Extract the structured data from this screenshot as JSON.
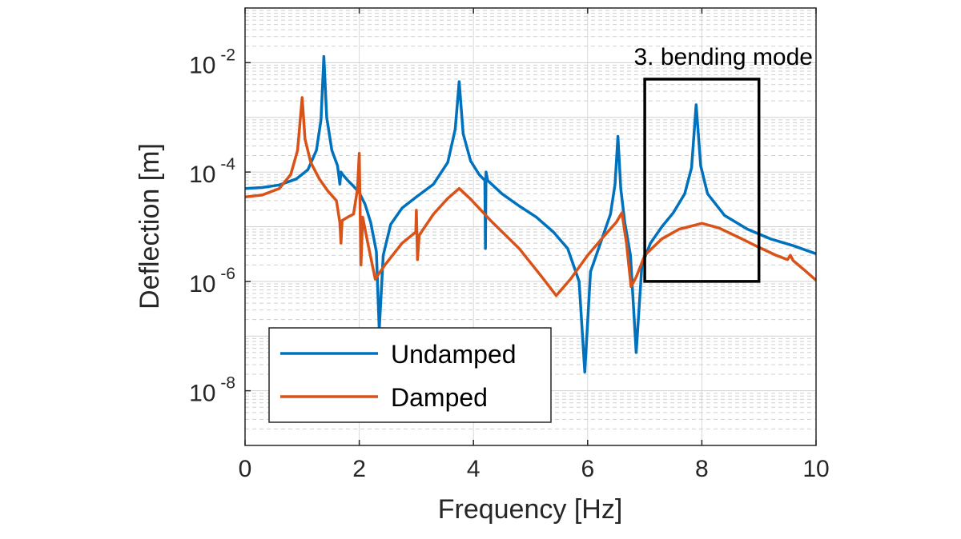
{
  "chart_data": {
    "type": "line",
    "title": "",
    "xlabel": "Frequency [Hz]",
    "ylabel": "Deflection [m]",
    "x_scale": "linear",
    "y_scale": "log",
    "xlim": [
      0,
      10
    ],
    "ylim": [
      1e-09,
      0.1
    ],
    "xticks": [
      0,
      2,
      4,
      6,
      8,
      10
    ],
    "xtick_labels": [
      "0",
      "2",
      "4",
      "6",
      "8",
      "10"
    ],
    "yticks": [
      0.01,
      0.0001,
      1e-06,
      1e-08
    ],
    "ytick_labels": [
      {
        "base": "10",
        "exp": "-2"
      },
      {
        "base": "10",
        "exp": "-4"
      },
      {
        "base": "10",
        "exp": "-6"
      },
      {
        "base": "10",
        "exp": "-8"
      }
    ],
    "grid": "major and minor",
    "legend_position": "bottom-left",
    "series": [
      {
        "name": "Undamped",
        "color": "#0072BD",
        "points": [
          [
            0,
            5e-05
          ],
          [
            0.3,
            5.2e-05
          ],
          [
            0.6,
            5.8e-05
          ],
          [
            0.9,
            7.5e-05
          ],
          [
            1.1,
            0.00011
          ],
          [
            1.25,
            0.00025
          ],
          [
            1.33,
            0.0009
          ],
          [
            1.38,
            0.013
          ],
          [
            1.43,
            0.001
          ],
          [
            1.52,
            0.00025
          ],
          [
            1.62,
            0.00013
          ],
          [
            1.66,
            6e-05
          ],
          [
            1.68,
            0.0001
          ],
          [
            1.71,
            9e-05
          ],
          [
            1.8,
            7e-05
          ],
          [
            1.9,
            5.5e-05
          ],
          [
            2.0,
            4.2e-05
          ],
          [
            2.1,
            2.6e-05
          ],
          [
            2.2,
            1.2e-05
          ],
          [
            2.3,
            3.5e-06
          ],
          [
            2.35,
            1.3e-07
          ],
          [
            2.42,
            3e-06
          ],
          [
            2.55,
            1.1e-05
          ],
          [
            2.75,
            2.2e-05
          ],
          [
            3.0,
            3.5e-05
          ],
          [
            3.3,
            6e-05
          ],
          [
            3.55,
            0.00015
          ],
          [
            3.68,
            0.0006
          ],
          [
            3.75,
            0.0045
          ],
          [
            3.82,
            0.0005
          ],
          [
            3.95,
            0.00016
          ],
          [
            4.1,
            9e-05
          ],
          [
            4.2,
            7e-05
          ],
          [
            4.21,
            4e-06
          ],
          [
            4.22,
            0.0001
          ],
          [
            4.25,
            7e-05
          ],
          [
            4.5,
            4e-05
          ],
          [
            4.8,
            2.4e-05
          ],
          [
            5.1,
            1.5e-05
          ],
          [
            5.4,
            8e-06
          ],
          [
            5.65,
            4e-06
          ],
          [
            5.85,
            1e-06
          ],
          [
            5.95,
            2.2e-08
          ],
          [
            6.05,
            1.5e-06
          ],
          [
            6.25,
            6e-06
          ],
          [
            6.4,
            1.7e-05
          ],
          [
            6.48,
            6e-05
          ],
          [
            6.53,
            0.00045
          ],
          [
            6.58,
            5e-05
          ],
          [
            6.65,
            1.2e-05
          ],
          [
            6.75,
            3e-06
          ],
          [
            6.85,
            5e-08
          ],
          [
            6.95,
            2e-06
          ],
          [
            7.1,
            5e-06
          ],
          [
            7.3,
            1e-05
          ],
          [
            7.5,
            1.8e-05
          ],
          [
            7.7,
            4e-05
          ],
          [
            7.82,
            0.00012
          ],
          [
            7.9,
            0.0017
          ],
          [
            7.98,
            0.00013
          ],
          [
            8.1,
            4e-05
          ],
          [
            8.4,
            1.6e-05
          ],
          [
            8.8,
            9e-06
          ],
          [
            9.2,
            6e-06
          ],
          [
            9.6,
            4.5e-06
          ],
          [
            10,
            3.2e-06
          ]
        ]
      },
      {
        "name": "Damped",
        "color": "#D95319",
        "points": [
          [
            0,
            3.5e-05
          ],
          [
            0.3,
            3.8e-05
          ],
          [
            0.6,
            5e-05
          ],
          [
            0.8,
            9e-05
          ],
          [
            0.92,
            0.00025
          ],
          [
            1.0,
            0.0023
          ],
          [
            1.05,
            0.0004
          ],
          [
            1.15,
            0.00015
          ],
          [
            1.3,
            7.5e-05
          ],
          [
            1.45,
            4.5e-05
          ],
          [
            1.6,
            3e-05
          ],
          [
            1.66,
            1.2e-05
          ],
          [
            1.68,
            5e-06
          ],
          [
            1.7,
            1.3e-05
          ],
          [
            1.8,
            1.5e-05
          ],
          [
            1.9,
            1.7e-05
          ],
          [
            1.97,
            5e-05
          ],
          [
            2.0,
            0.00022
          ],
          [
            2.03,
            2e-06
          ],
          [
            2.06,
            1.5e-05
          ],
          [
            2.15,
            5e-06
          ],
          [
            2.28,
            1.1e-06
          ],
          [
            2.45,
            2e-06
          ],
          [
            2.75,
            5e-06
          ],
          [
            2.99,
            8e-06
          ],
          [
            3.0,
            2e-05
          ],
          [
            3.02,
            2.5e-06
          ],
          [
            3.05,
            7e-06
          ],
          [
            3.3,
            1.7e-05
          ],
          [
            3.55,
            3.3e-05
          ],
          [
            3.75,
            5e-05
          ],
          [
            3.95,
            3.2e-05
          ],
          [
            4.3,
            1.3e-05
          ],
          [
            4.8,
            4e-06
          ],
          [
            5.2,
            1.2e-06
          ],
          [
            5.45,
            5.5e-07
          ],
          [
            5.7,
            1.1e-06
          ],
          [
            6.0,
            3e-06
          ],
          [
            6.3,
            7e-06
          ],
          [
            6.5,
            1.2e-05
          ],
          [
            6.6,
            1.8e-05
          ],
          [
            6.68,
            5e-06
          ],
          [
            6.76,
            8e-07
          ],
          [
            6.85,
            1.2e-06
          ],
          [
            7.0,
            3e-06
          ],
          [
            7.3,
            6e-06
          ],
          [
            7.6,
            9e-06
          ],
          [
            8.0,
            1.15e-05
          ],
          [
            8.3,
            9.5e-06
          ],
          [
            8.7,
            6e-06
          ],
          [
            9.0,
            4.2e-06
          ],
          [
            9.3,
            3e-06
          ],
          [
            9.5,
            2.5e-06
          ],
          [
            9.55,
            3e-06
          ],
          [
            9.6,
            2.4e-06
          ],
          [
            9.8,
            1.6e-06
          ],
          [
            10,
            1.05e-06
          ]
        ]
      }
    ],
    "annotations": [
      {
        "text": "3. bending mode",
        "box": {
          "x0": 7,
          "x1": 9,
          "y0": 1e-06,
          "y1": 0.005
        }
      }
    ]
  }
}
